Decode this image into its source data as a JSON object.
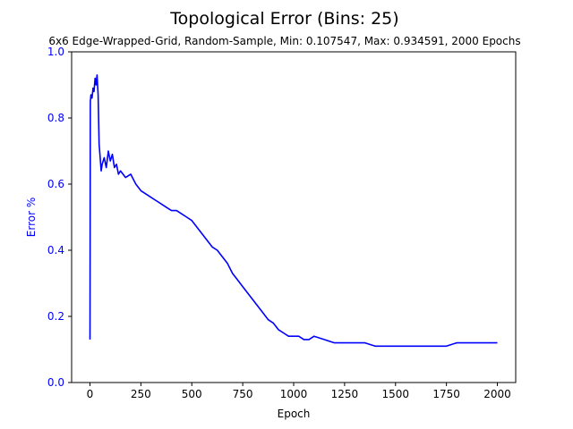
{
  "chart_data": {
    "type": "line",
    "title": "Topological Error (Bins: 25)",
    "subtitle": "6x6 Edge-Wrapped-Grid, Random-Sample, Min: 0.107547, Max: 0.934591, 2000 Epochs",
    "xlabel": "Epoch",
    "ylabel": "Error %",
    "xlim": [
      -90,
      2090
    ],
    "ylim": [
      0,
      1
    ],
    "xticks": [
      0,
      250,
      500,
      750,
      1000,
      1250,
      1500,
      1750,
      2000
    ],
    "yticks": [
      0.0,
      0.2,
      0.4,
      0.6,
      0.8,
      1.0
    ],
    "grid": false,
    "line_color": "#0000ff",
    "ylabel_color": "#0000ff",
    "series": [
      {
        "values_x": [
          0,
          2,
          5,
          10,
          15,
          20,
          25,
          30,
          35,
          40,
          45,
          50,
          55,
          60,
          70,
          80,
          90,
          100,
          110,
          120,
          130,
          140,
          150,
          175,
          200,
          225,
          250,
          275,
          300,
          325,
          350,
          375,
          400,
          425,
          450,
          475,
          500,
          525,
          550,
          575,
          600,
          625,
          650,
          675,
          700,
          725,
          750,
          775,
          800,
          825,
          850,
          875,
          900,
          925,
          950,
          975,
          1000,
          1025,
          1050,
          1075,
          1100,
          1150,
          1200,
          1250,
          1300,
          1350,
          1400,
          1450,
          1500,
          1550,
          1600,
          1650,
          1700,
          1750,
          1800,
          1850,
          1900,
          1950,
          2000
        ],
        "values_y": [
          0.13,
          0.85,
          0.87,
          0.86,
          0.89,
          0.88,
          0.92,
          0.9,
          0.93,
          0.87,
          0.72,
          0.68,
          0.64,
          0.66,
          0.68,
          0.65,
          0.7,
          0.67,
          0.69,
          0.65,
          0.66,
          0.63,
          0.64,
          0.62,
          0.63,
          0.6,
          0.58,
          0.57,
          0.56,
          0.55,
          0.54,
          0.53,
          0.52,
          0.52,
          0.51,
          0.5,
          0.49,
          0.47,
          0.45,
          0.43,
          0.41,
          0.4,
          0.38,
          0.36,
          0.33,
          0.31,
          0.29,
          0.27,
          0.25,
          0.23,
          0.21,
          0.19,
          0.18,
          0.16,
          0.15,
          0.14,
          0.14,
          0.14,
          0.13,
          0.13,
          0.14,
          0.13,
          0.12,
          0.12,
          0.12,
          0.12,
          0.11,
          0.11,
          0.11,
          0.11,
          0.11,
          0.11,
          0.11,
          0.11,
          0.12,
          0.12,
          0.12,
          0.12,
          0.12
        ]
      }
    ]
  }
}
